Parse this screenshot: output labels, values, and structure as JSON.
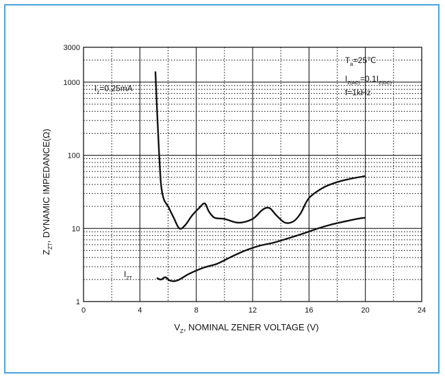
{
  "colors": {
    "frame": "#4aa3df",
    "grid": "#000000",
    "curve": "#111111"
  },
  "chart_data": {
    "type": "line",
    "title": "",
    "xlabel": {
      "main": "V",
      "sub": "Z",
      "rest": ", NOMINAL ZENER VOLTAGE (V)"
    },
    "ylabel": {
      "main": "Z",
      "sub": "ZT",
      "rest": ", DYNAMIC IMPEDANCE(Ω)"
    },
    "xlim": [
      0,
      24
    ],
    "ylim": [
      1,
      3000
    ],
    "yscale": "log",
    "grid": true,
    "x_ticks": [
      "0",
      "4",
      "8",
      "12",
      "16",
      "20",
      "24"
    ],
    "y_ticks": [
      "1",
      "10",
      "100",
      "1000",
      "3000"
    ],
    "annotations": {
      "ta": {
        "main": "T",
        "sub": "a",
        "rest": "=25℃"
      },
      "iz_ac": {
        "p1": "I",
        "s1": "Z(AC)",
        "p2": "=0.1I",
        "s2": "Z(DC)"
      },
      "freq": "f=1kHz",
      "iz": {
        "main": "I",
        "sub": "z",
        "rest": "=0.25mA"
      },
      "izt": {
        "main": "I",
        "sub": "ZT"
      }
    },
    "series": [
      {
        "x": [
          5.1,
          5.2,
          5.35,
          5.5,
          5.7,
          6.0,
          6.4,
          6.8,
          7.2,
          7.7,
          8.2,
          8.6,
          8.9,
          9.3,
          10.0,
          11.0,
          12.0,
          12.7,
          13.2,
          13.7,
          14.3,
          14.9,
          15.4,
          16.0,
          17.0,
          18.0,
          19.0,
          20.0
        ],
        "y": [
          1400,
          500,
          120,
          40,
          25,
          20,
          14,
          10,
          11,
          15,
          19,
          22,
          17,
          14,
          13.5,
          12,
          13.5,
          18,
          19,
          15,
          12,
          12.5,
          16,
          26,
          36,
          43,
          48,
          52
        ]
      },
      {
        "x": [
          5.2,
          5.5,
          5.8,
          6.1,
          6.4,
          6.8,
          7.5,
          8.5,
          9.5,
          10.5,
          11.5,
          12.5,
          13.5,
          14.5,
          15.5,
          16.5,
          17.5,
          18.5,
          19.5,
          20.0
        ],
        "y": [
          2.1,
          2.0,
          2.15,
          1.95,
          1.9,
          2.0,
          2.4,
          2.9,
          3.3,
          4.1,
          5.0,
          5.8,
          6.4,
          7.3,
          8.4,
          9.8,
          11.2,
          12.4,
          13.6,
          14.0
        ]
      }
    ]
  }
}
